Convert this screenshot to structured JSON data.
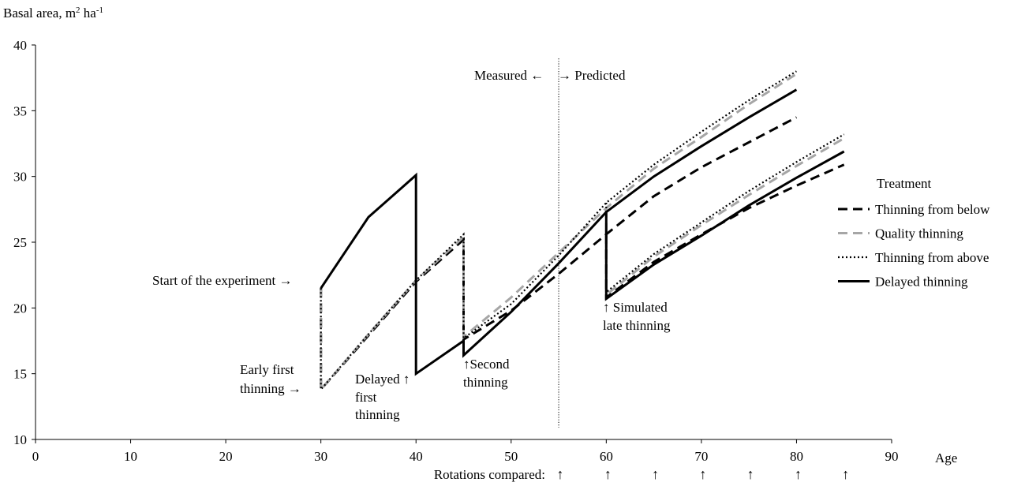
{
  "chart_data": {
    "type": "line",
    "ylabel": "Basal area, m",
    "ylabel_sup1": "2",
    "ylabel_mid": " ha",
    "ylabel_sup2": "-1",
    "xlabel": "Age",
    "xlim": [
      0,
      90
    ],
    "ylim": [
      10,
      40
    ],
    "x_ticks": [
      "0",
      "10",
      "20",
      "30",
      "40",
      "50",
      "60",
      "70",
      "80",
      "90"
    ],
    "y_ticks": [
      "10",
      "15",
      "20",
      "25",
      "30",
      "35",
      "40"
    ],
    "grid": false,
    "legend_title": "Treatment",
    "legend_position": "right",
    "series": [
      {
        "name": "Thinning from below",
        "style": "dashed",
        "color": "#000000",
        "segments": [
          [
            [
              30,
              21.5
            ],
            [
              30,
              13.8
            ],
            [
              35,
              17.9
            ],
            [
              40,
              22.0
            ],
            [
              45,
              25.2
            ],
            [
              45,
              17.6
            ],
            [
              50,
              19.8
            ],
            [
              55,
              22.6
            ],
            [
              60,
              25.6
            ],
            [
              65,
              28.5
            ],
            [
              70,
              30.7
            ],
            [
              75,
              32.6
            ],
            [
              80,
              34.5
            ]
          ],
          [
            [
              60,
              25.6
            ],
            [
              60,
              20.8
            ],
            [
              65,
              23.5
            ],
            [
              70,
              25.6
            ],
            [
              75,
              27.6
            ],
            [
              80,
              29.3
            ],
            [
              85,
              30.9
            ]
          ]
        ]
      },
      {
        "name": "Quality thinning",
        "style": "dashed",
        "color": "#a6a6a6",
        "segments": [
          [
            [
              30,
              21.5
            ],
            [
              30,
              13.8
            ],
            [
              35,
              18.0
            ],
            [
              40,
              22.1
            ],
            [
              45,
              25.4
            ],
            [
              45,
              17.8
            ],
            [
              50,
              20.8
            ],
            [
              55,
              24.2
            ],
            [
              60,
              27.6
            ],
            [
              65,
              30.6
            ],
            [
              70,
              33.0
            ],
            [
              75,
              35.5
            ],
            [
              80,
              37.8
            ]
          ],
          [
            [
              60,
              27.6
            ],
            [
              60,
              21.0
            ],
            [
              65,
              23.9
            ],
            [
              70,
              26.3
            ],
            [
              75,
              28.6
            ],
            [
              80,
              30.8
            ],
            [
              85,
              32.9
            ]
          ]
        ]
      },
      {
        "name": "Thinning from above",
        "style": "dotted",
        "color": "#000000",
        "segments": [
          [
            [
              30,
              21.5
            ],
            [
              30,
              13.8
            ],
            [
              35,
              18.0
            ],
            [
              40,
              22.1
            ],
            [
              45,
              25.6
            ],
            [
              45,
              17.7
            ],
            [
              50,
              20.3
            ],
            [
              55,
              24.0
            ],
            [
              60,
              28.0
            ],
            [
              65,
              30.9
            ],
            [
              70,
              33.4
            ],
            [
              75,
              35.8
            ],
            [
              80,
              38.0
            ]
          ],
          [
            [
              60,
              28.0
            ],
            [
              60,
              21.2
            ],
            [
              65,
              24.1
            ],
            [
              70,
              26.5
            ],
            [
              75,
              28.9
            ],
            [
              80,
              31.1
            ],
            [
              85,
              33.2
            ]
          ]
        ]
      },
      {
        "name": "Delayed thinning",
        "style": "solid",
        "color": "#000000",
        "segments": [
          [
            [
              30,
              21.5
            ],
            [
              35,
              26.9
            ],
            [
              40,
              30.1
            ],
            [
              40,
              15.0
            ],
            [
              45,
              17.5
            ],
            [
              45,
              16.4
            ],
            [
              50,
              19.7
            ],
            [
              55,
              23.4
            ],
            [
              60,
              27.3
            ],
            [
              65,
              30.0
            ],
            [
              70,
              32.3
            ],
            [
              75,
              34.5
            ],
            [
              80,
              36.6
            ]
          ],
          [
            [
              60,
              27.3
            ],
            [
              60,
              20.7
            ],
            [
              65,
              23.3
            ],
            [
              70,
              25.5
            ],
            [
              75,
              27.8
            ],
            [
              80,
              29.9
            ],
            [
              85,
              31.9
            ]
          ]
        ]
      }
    ],
    "reference_line": {
      "x": 55,
      "style": "dotted"
    },
    "annotations": {
      "measured": "Measured ←",
      "predicted": "→ Predicted",
      "start": "Start of the experiment →",
      "early_1": "Early first",
      "early_2": "thinning →",
      "delayed_1": "Delayed ↑",
      "delayed_2": "first",
      "delayed_3": "thinning",
      "second_1": "↑Second",
      "second_2": "thinning",
      "simulated_1": "↑ Simulated",
      "simulated_2": "late thinning"
    },
    "rotations": {
      "label": "Rotations compared:",
      "ages": [
        55,
        60,
        65,
        70,
        75,
        80,
        85
      ],
      "arrow": "↑"
    }
  }
}
